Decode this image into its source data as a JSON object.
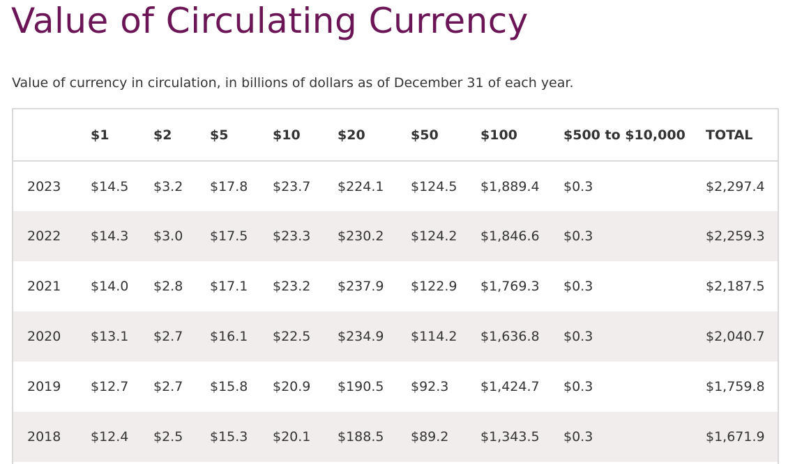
{
  "page": {
    "title": "Value of Circulating Currency",
    "subtitle": "Value of currency in circulation, in billions of dollars as of December 31 of each year."
  },
  "table": {
    "headers": [
      "",
      "$1",
      "$2",
      "$5",
      "$10",
      "$20",
      "$50",
      "$100",
      "$500 to $10,000",
      "TOTAL"
    ],
    "rows": [
      [
        "2023",
        "$14.5",
        "$3.2",
        "$17.8",
        "$23.7",
        "$224.1",
        "$124.5",
        "$1,889.4",
        "$0.3",
        "$2,297.4"
      ],
      [
        "2022",
        "$14.3",
        "$3.0",
        "$17.5",
        "$23.3",
        "$230.2",
        "$124.2",
        "$1,846.6",
        "$0.3",
        "$2,259.3"
      ],
      [
        "2021",
        "$14.0",
        "$2.8",
        "$17.1",
        "$23.2",
        "$237.9",
        "$122.9",
        "$1,769.3",
        "$0.3",
        "$2,187.5"
      ],
      [
        "2020",
        "$13.1",
        "$2.7",
        "$16.1",
        "$22.5",
        "$234.9",
        "$114.2",
        "$1,636.8",
        "$0.3",
        "$2,040.7"
      ],
      [
        "2019",
        "$12.7",
        "$2.7",
        "$15.8",
        "$20.9",
        "$190.5",
        "$92.3",
        "$1,424.7",
        "$0.3",
        "$1,759.8"
      ],
      [
        "2018",
        "$12.4",
        "$2.5",
        "$15.3",
        "$20.1",
        "$188.5",
        "$89.2",
        "$1,343.5",
        "$0.3",
        "$1,671.9"
      ]
    ]
  }
}
